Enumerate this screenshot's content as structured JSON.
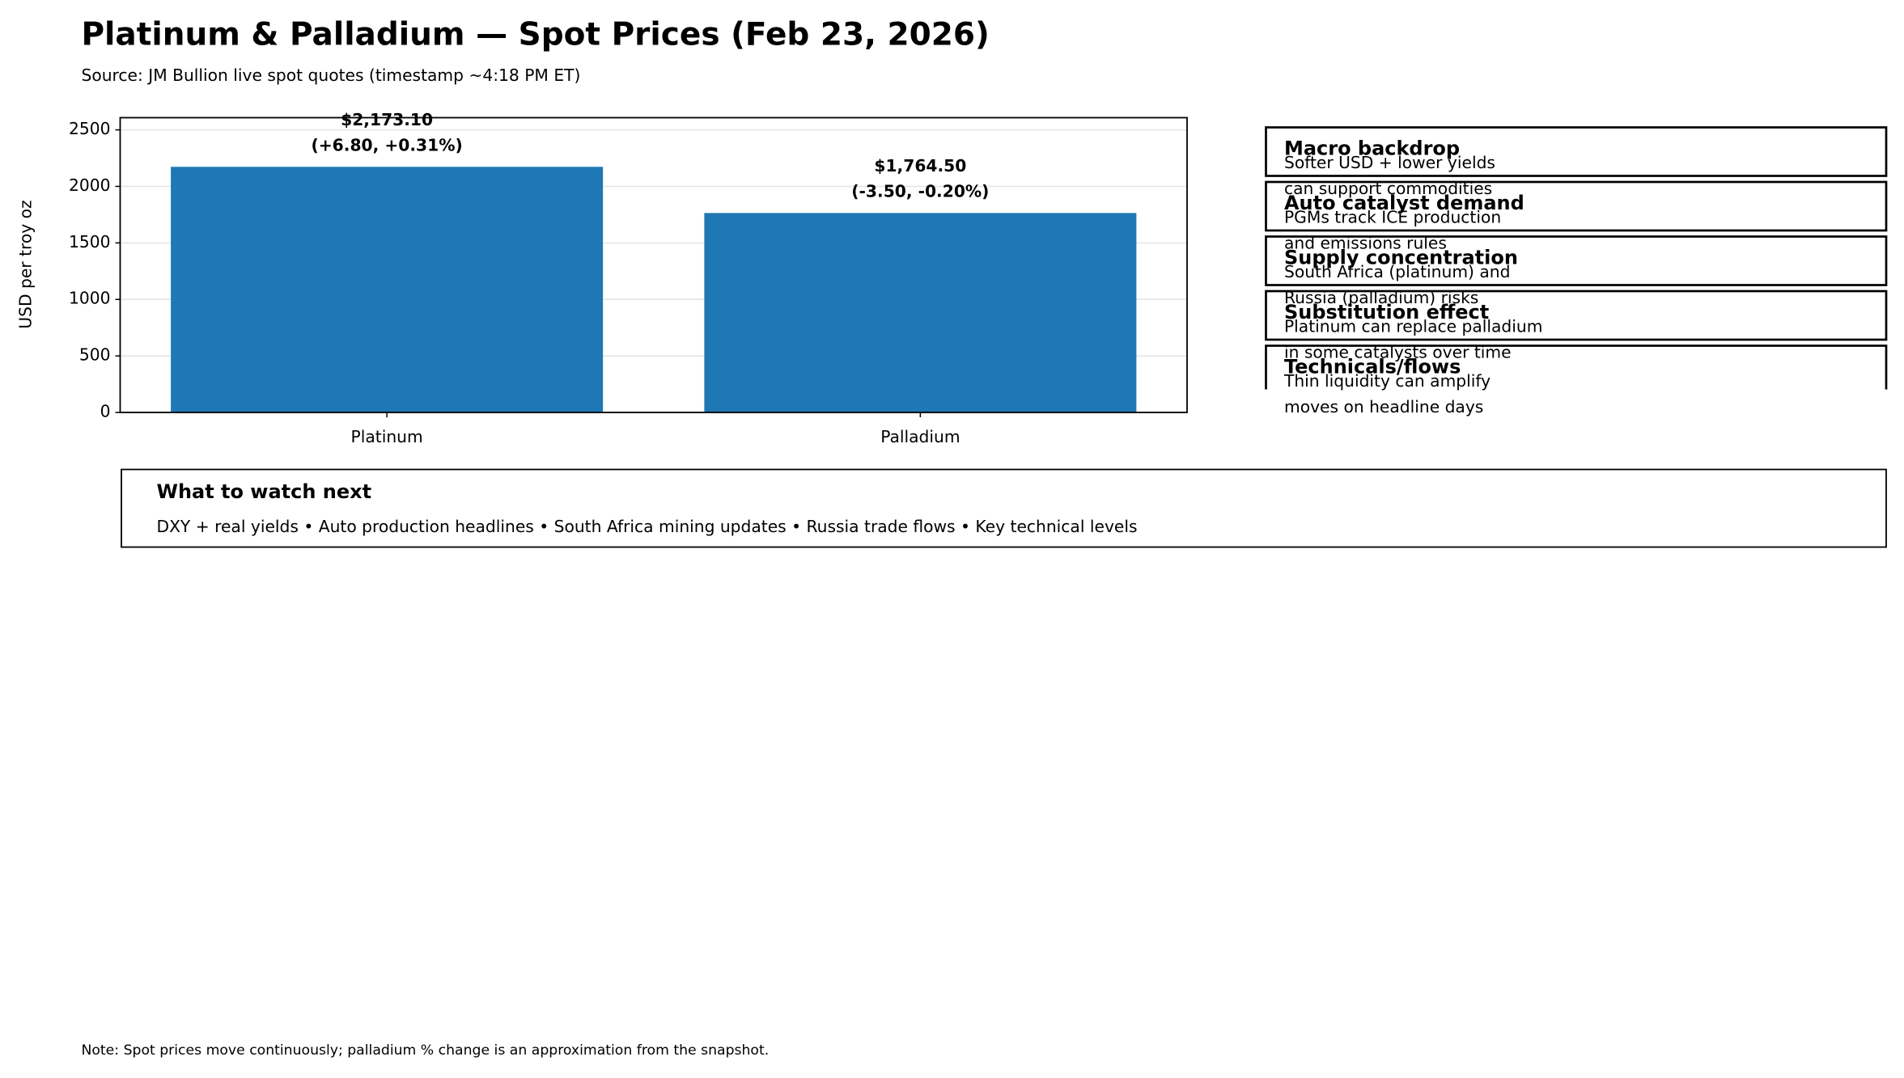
{
  "chart_data": {
    "type": "bar",
    "title": "Platinum & Palladium — Spot Prices (Feb 23, 2026)",
    "subtitle": "Source: JM Bullion live spot quotes (timestamp ~4:18 PM ET)",
    "y_label": "USD per troy oz",
    "categories": [
      "Platinum",
      "Palladium"
    ],
    "values": [
      2173.1,
      1764.5
    ],
    "value_labels": [
      "$2,173.10",
      "$1,764.50"
    ],
    "annotations": [
      "(+6.80, +0.31%)",
      "(-3.50, -0.20%)"
    ],
    "color": "#1f77b4",
    "ylim": [
      0,
      2608
    ],
    "yticks": [
      0,
      500,
      1000,
      1500,
      2000,
      2500
    ],
    "grid": true,
    "note": "Note: Spot prices move continuously; palladium % change is an approximation from the snapshot."
  },
  "panels": [
    {
      "title": "Macro backdrop",
      "body": [
        "Softer USD + lower yields",
        "can support commodities"
      ]
    },
    {
      "title": "Auto catalyst demand",
      "body": [
        "PGMs track ICE production",
        "and emissions rules"
      ]
    },
    {
      "title": "Supply concentration",
      "body": [
        "South Africa (platinum) and",
        "Russia (palladium) risks"
      ]
    },
    {
      "title": "Substitution effect",
      "body": [
        "Platinum can replace palladium",
        "in some catalysts over time"
      ]
    },
    {
      "title": "Technicals/flows",
      "body": [
        "Thin liquidity can amplify",
        "moves on headline days"
      ]
    }
  ],
  "watch": {
    "title": "What to watch next",
    "text": "DXY + real yields • Auto production headlines • South Africa mining updates • Russia trade flows • Key technical levels"
  }
}
